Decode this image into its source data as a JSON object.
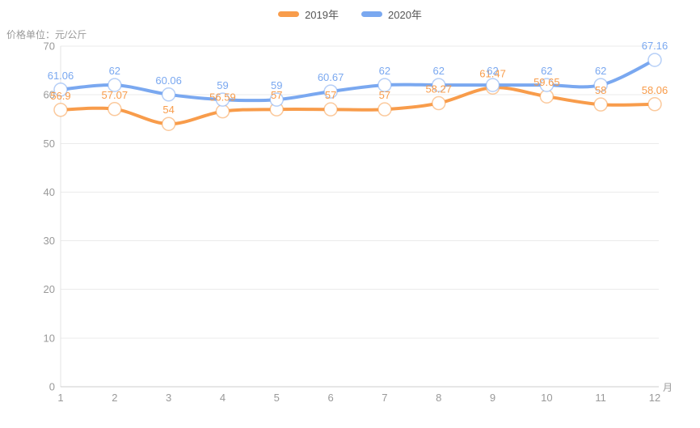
{
  "unit_label": "价格单位：元/公斤",
  "legend": {
    "items": [
      {
        "label": "2019年",
        "color": "#F89C4B"
      },
      {
        "label": "2020年",
        "color": "#7AA8F0"
      }
    ]
  },
  "chart_data": {
    "type": "line",
    "smooth": true,
    "grid": true,
    "data_labels": true,
    "legend_position": "top-center",
    "x_axis_name": "月",
    "categories": [
      "1",
      "2",
      "3",
      "4",
      "5",
      "6",
      "7",
      "8",
      "9",
      "10",
      "11",
      "12"
    ],
    "series": [
      {
        "name": "2019年",
        "color": "#F89C4B",
        "values": [
          56.9,
          57.07,
          54,
          56.59,
          57,
          57,
          57,
          58.27,
          61.47,
          59.65,
          58,
          58.06
        ]
      },
      {
        "name": "2020年",
        "color": "#7AA8F0",
        "values": [
          61.06,
          62,
          60.06,
          59,
          59,
          60.67,
          62,
          62,
          62,
          62,
          62,
          67.16
        ]
      }
    ],
    "ylim": [
      0,
      70
    ],
    "y_ticks": [
      0,
      10,
      20,
      30,
      40,
      50,
      60,
      70
    ],
    "ylabel": "",
    "xlabel": "月",
    "title": ""
  },
  "styles": {
    "grid_color": "#ebebeb",
    "axis_line_color": "#cccccc",
    "y_axis_line_color": "#e3e3e3",
    "tick_label_color": "#999999",
    "marker_fill": "#ffffff",
    "background": "#ffffff"
  }
}
